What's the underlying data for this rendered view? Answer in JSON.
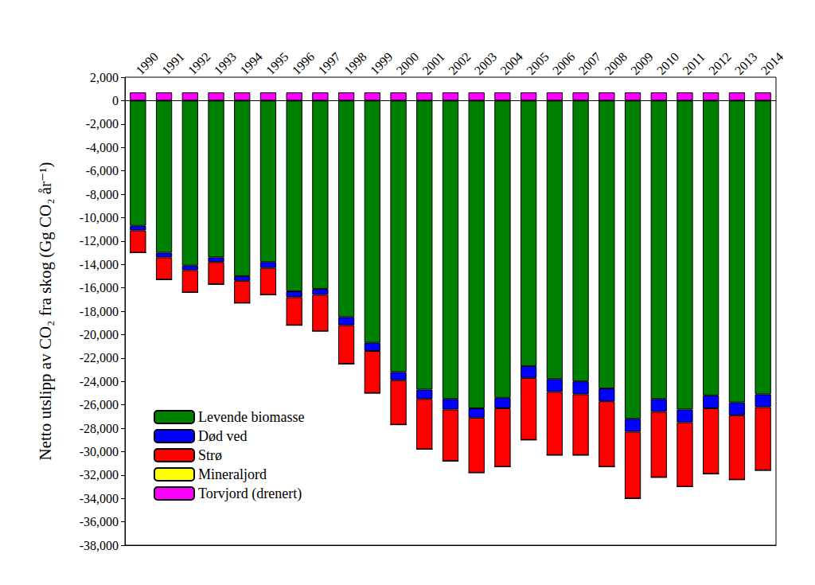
{
  "chart_data": {
    "type": "bar",
    "y_label": "Netto utslipp av CO₂ fra skog (Gg CO₂ år⁻¹)",
    "categories": [
      "1990",
      "1991",
      "1992",
      "1993",
      "1994",
      "1995",
      "1996",
      "1997",
      "1998",
      "1999",
      "2000",
      "2001",
      "2002",
      "2003",
      "2004",
      "2005",
      "2006",
      "2007",
      "2008",
      "2009",
      "2010",
      "2011",
      "2012",
      "2013",
      "2014"
    ],
    "series": [
      {
        "name": "Levende biomasse",
        "color": "#008000",
        "values": [
          -10700,
          -13000,
          -14100,
          -13400,
          -15000,
          -13800,
          -16300,
          -16100,
          -18500,
          -20700,
          -23200,
          -24700,
          -25500,
          -26300,
          -25400,
          -22700,
          -23800,
          -24000,
          -24600,
          -27200,
          -25500,
          -26400,
          -25200,
          -25800,
          -25100
        ]
      },
      {
        "name": "Død ved",
        "color": "#0000ff",
        "values": [
          -400,
          -400,
          -400,
          -400,
          -400,
          -500,
          -500,
          -500,
          -700,
          -700,
          -700,
          -800,
          -900,
          -800,
          -900,
          -1000,
          -1100,
          -1100,
          -1100,
          -1100,
          -1100,
          -1100,
          -1100,
          -1100,
          -1100
        ]
      },
      {
        "name": "Strø",
        "color": "#ff0000",
        "values": [
          -1900,
          -1900,
          -1900,
          -1900,
          -1900,
          -2300,
          -2400,
          -3100,
          -3300,
          -3600,
          -3800,
          -4300,
          -4400,
          -4700,
          -5000,
          -5300,
          -5400,
          -5200,
          -5600,
          -5700,
          -5600,
          -5500,
          -5600,
          -5500,
          -5400
        ]
      },
      {
        "name": "Mineraljord",
        "color": "#ffff00",
        "values": [
          0,
          0,
          0,
          0,
          0,
          0,
          0,
          0,
          0,
          0,
          0,
          0,
          0,
          0,
          0,
          0,
          0,
          0,
          0,
          0,
          0,
          0,
          0,
          0,
          0
        ]
      },
      {
        "name": "Torvjord (drenert)",
        "color": "#ff00ff",
        "values": [
          700,
          700,
          700,
          700,
          700,
          700,
          700,
          700,
          700,
          700,
          700,
          700,
          700,
          700,
          700,
          700,
          700,
          700,
          700,
          700,
          700,
          700,
          700,
          700,
          700
        ]
      }
    ],
    "ylim": [
      -38000,
      2000
    ],
    "yticks": [
      -38000,
      -36000,
      -34000,
      -32000,
      -30000,
      -28000,
      -26000,
      -24000,
      -22000,
      -20000,
      -18000,
      -16000,
      -14000,
      -12000,
      -10000,
      -8000,
      -6000,
      -4000,
      -2000,
      0,
      2000
    ],
    "stacked": true,
    "grid": false,
    "legend": "lower left"
  }
}
